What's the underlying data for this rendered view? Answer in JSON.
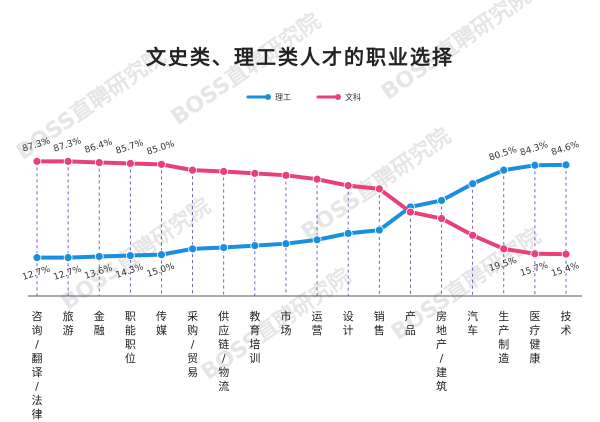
{
  "chart_data": {
    "type": "line",
    "title": "文史类、理工类人才的职业选择",
    "categories": [
      "咨询/翻译/法律",
      "旅游",
      "金融",
      "职能职位",
      "传媒",
      "采购/贸易",
      "供应链/物流",
      "教育培训",
      "市场",
      "运营",
      "设计",
      "销售",
      "产品",
      "房地产/建筑",
      "汽车",
      "生产制造",
      "医疗健康",
      "技术"
    ],
    "series": [
      {
        "name": "理工",
        "color": "#1a8fe0",
        "values": [
          12.7,
          12.7,
          13.6,
          14.3,
          15.0,
          19.5,
          20.5,
          22.0,
          23.5,
          26.5,
          31.5,
          34.0,
          52.0,
          57.0,
          70.0,
          80.5,
          84.3,
          84.6
        ],
        "labels": {
          "0": "12.7%",
          "1": "12.7%",
          "2": "13.6%",
          "3": "14.3%",
          "4": "15.0%",
          "15": "80.5%",
          "16": "84.3%",
          "17": "84.6%"
        }
      },
      {
        "name": "文科",
        "color": "#e8407a",
        "values": [
          87.3,
          87.3,
          86.4,
          85.7,
          85.0,
          80.5,
          79.5,
          78.0,
          76.5,
          73.5,
          68.5,
          66.0,
          48.0,
          43.0,
          30.0,
          19.5,
          15.7,
          15.4
        ],
        "labels": {
          "0": "87.3%",
          "1": "87.3%",
          "2": "86.4%",
          "3": "85.7%",
          "4": "85.0%",
          "15": "19.5%",
          "16": "15.7%",
          "17": "15.4%"
        }
      }
    ],
    "ylim": [
      0,
      100
    ],
    "legend_position": "top-center",
    "grid": false
  },
  "watermark": "BOSS直聘研究院"
}
